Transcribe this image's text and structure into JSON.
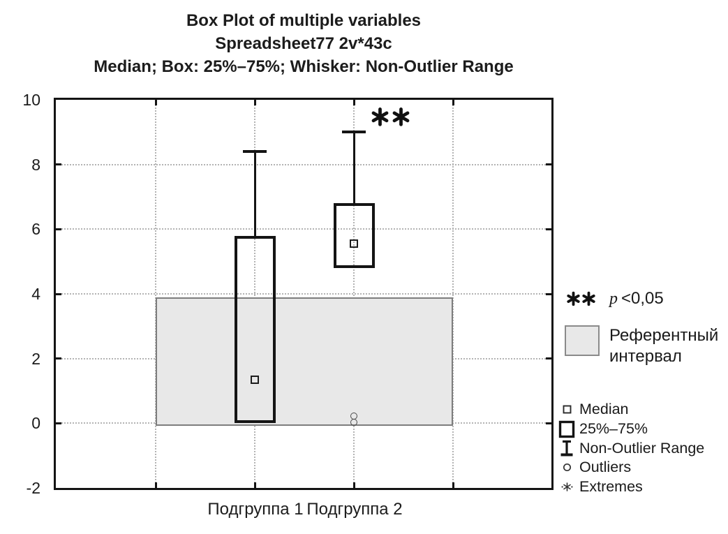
{
  "title": {
    "line1": "Box Plot of multiple variables",
    "line2": "Spreadsheet77 2v*43c",
    "line3": "Median; Box: 25%–75%; Whisker: Non-Outlier Range"
  },
  "axes": {
    "y": {
      "ticks": [
        "10",
        "8",
        "6",
        "4",
        "2",
        "0",
        "-2"
      ],
      "tick_values": [
        10,
        8,
        6,
        4,
        2,
        0,
        -2
      ],
      "grid_values": [
        8,
        6,
        4,
        2,
        0
      ]
    },
    "x": {
      "labels": [
        "Подгруппа 1",
        "Подгруппа 2"
      ]
    }
  },
  "legend": {
    "significance": {
      "symbol": "**",
      "p_symbol": "p",
      "threshold": "<0,05"
    },
    "reference": {
      "line1": "Референтный",
      "line2": "интервал"
    },
    "items": [
      {
        "label": "Median",
        "marker": "small-open-square"
      },
      {
        "label": "25%–75%",
        "marker": "large-open-square"
      },
      {
        "label": "Non-Outlier Range",
        "marker": "whisker-ibeam"
      },
      {
        "label": "Outliers",
        "marker": "open-circle"
      },
      {
        "label": "Extremes",
        "marker": "asterisk-dots"
      }
    ]
  },
  "colors": {
    "reference_fill": "#e8e8e8",
    "reference_border": "#7d7d7d",
    "box_stroke": "#141414",
    "grid": "#b3b3b3",
    "text": "#1a1a1a"
  },
  "chart_data": {
    "type": "box",
    "title": "Box Plot of multiple variables",
    "subtitle": "Spreadsheet77 2v*43c",
    "caption": "Median; Box: 25%–75%; Whisker: Non-Outlier Range",
    "categories": [
      "Подгруппа 1",
      "Подгруппа 2"
    ],
    "ylim": [
      -2,
      10
    ],
    "grid": true,
    "series": [
      {
        "name": "Подгруппа 1",
        "median": 1.35,
        "q1": 0.0,
        "q3": 5.8,
        "whisker_low": 0.0,
        "whisker_high": 8.4,
        "outliers": [],
        "significance": ""
      },
      {
        "name": "Подгруппа 2",
        "median": 5.55,
        "q1": 4.8,
        "q3": 6.8,
        "whisker_low": 4.8,
        "whisker_high": 9.0,
        "outliers": [
          0.22,
          0.02
        ],
        "significance": "**"
      }
    ],
    "reference_interval": {
      "low": 0.0,
      "high": 3.9,
      "label": "Референтный интервал"
    },
    "significance_note": "** p <0,05",
    "legend_position": "right"
  }
}
